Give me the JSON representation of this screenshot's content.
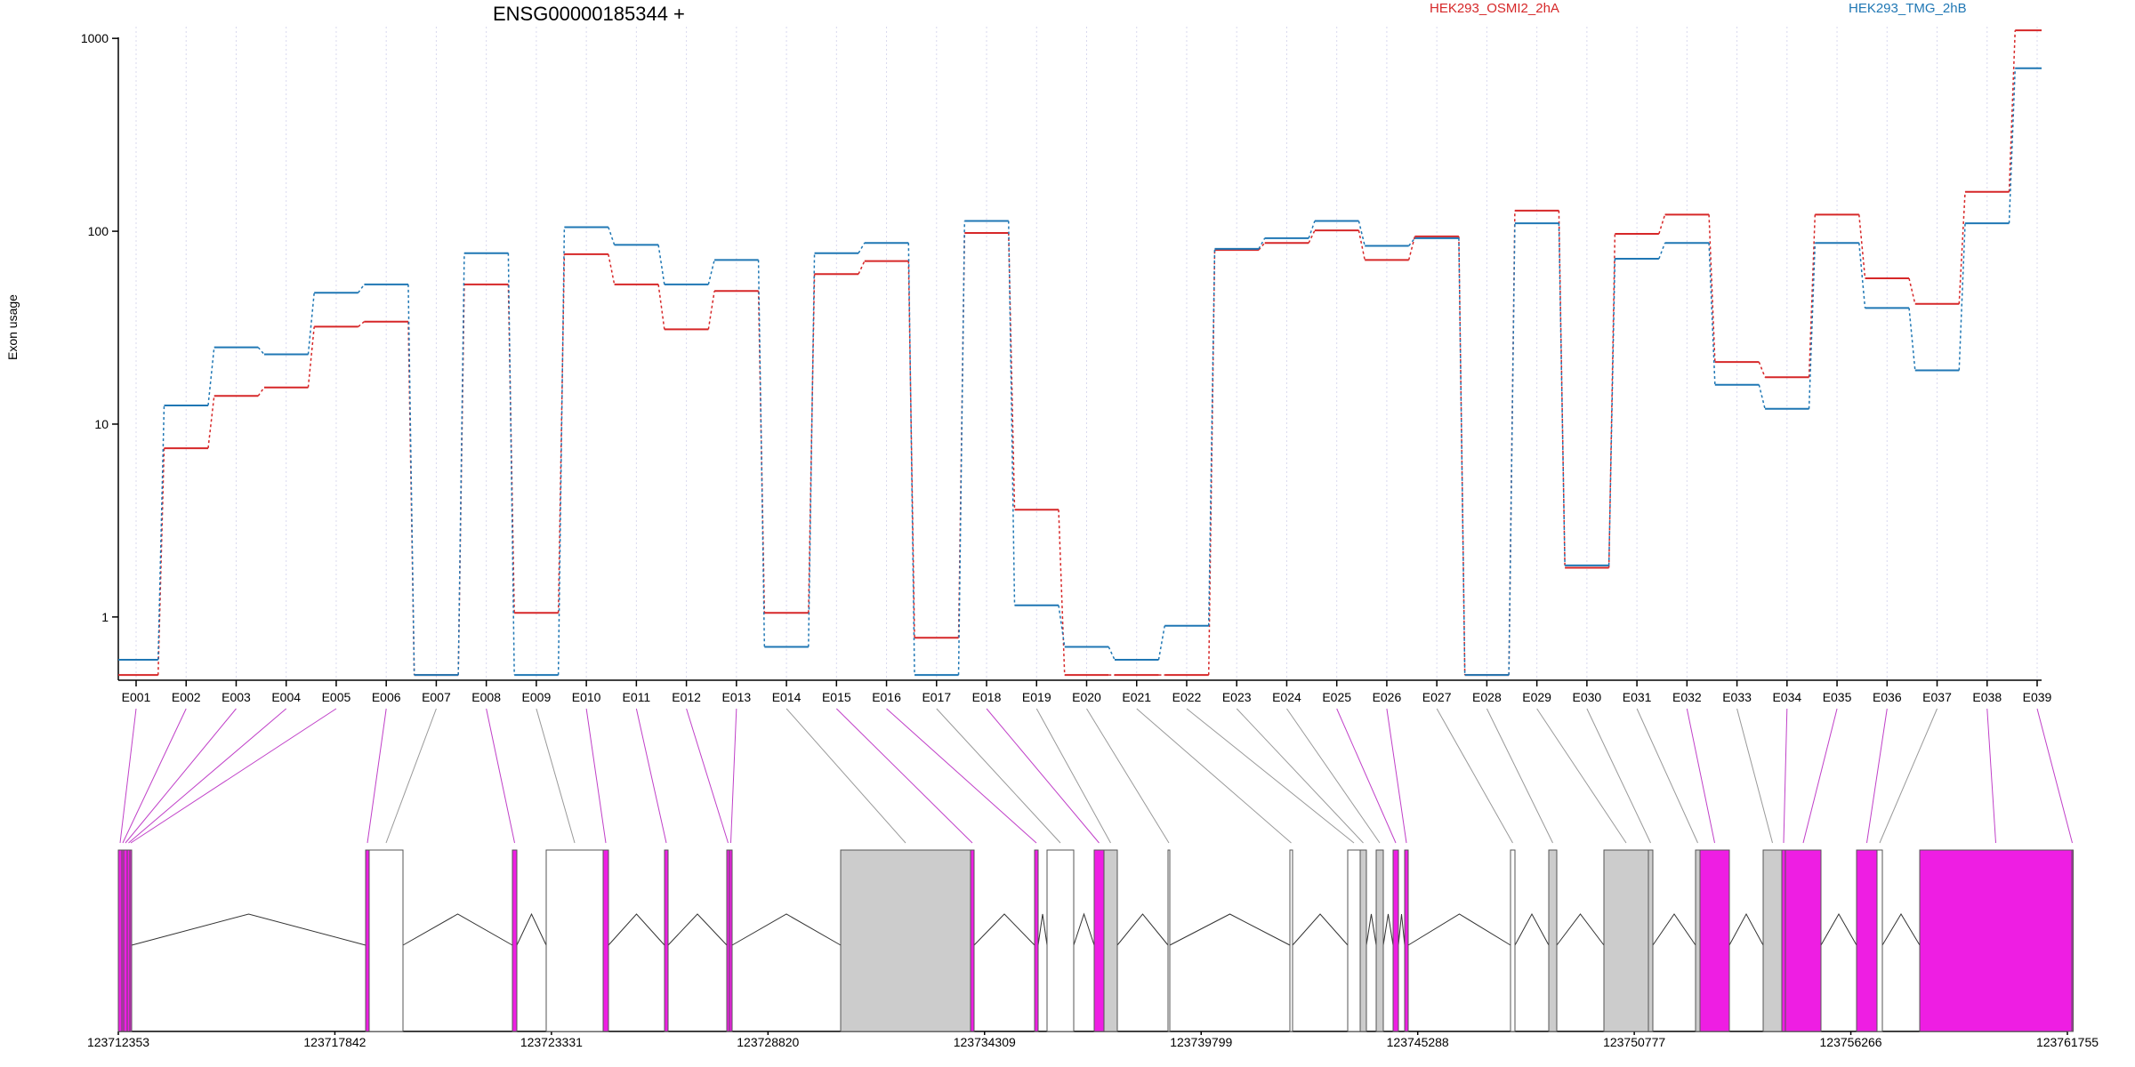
{
  "chart_data": {
    "type": "line",
    "title": "ENSG00000185344 +",
    "xlabel": "",
    "ylabel": "Exon usage",
    "y_scale": "log",
    "y_ticks": [
      1,
      10,
      100,
      1000
    ],
    "y_tick_labels": [
      "1",
      "10",
      "100",
      "1000"
    ],
    "ylim": [
      0.47,
      1150
    ],
    "categories": [
      "E001",
      "E002",
      "E003",
      "E004",
      "E005",
      "E006",
      "E007",
      "E008",
      "E009",
      "E010",
      "E011",
      "E012",
      "E013",
      "E014",
      "E015",
      "E016",
      "E017",
      "E018",
      "E019",
      "E020",
      "E021",
      "E022",
      "E023",
      "E024",
      "E025",
      "E026",
      "E027",
      "E028",
      "E029",
      "E030",
      "E031",
      "E032",
      "E033",
      "E034",
      "E035",
      "E036",
      "E037",
      "E038",
      "E039"
    ],
    "series": [
      {
        "name": "HEK293_OSMI2_2hA",
        "color": "#d62728",
        "values": [
          0.5,
          7.5,
          14,
          15.5,
          32,
          34,
          0.5,
          53,
          1.05,
          76,
          53,
          31,
          49,
          1.05,
          60,
          70,
          0.78,
          98,
          3.6,
          0.5,
          0.5,
          0.5,
          80,
          87,
          101,
          71,
          94,
          0.5,
          128,
          1.8,
          97,
          122,
          21,
          17.5,
          122,
          57,
          42,
          160,
          1100
        ]
      },
      {
        "name": "HEK293_TMG_2hB",
        "color": "#1f77b4",
        "values": [
          0.6,
          12.5,
          25,
          23,
          48,
          53,
          0.5,
          77,
          0.5,
          105,
          85,
          53,
          71,
          0.7,
          77,
          87,
          0.5,
          113,
          1.15,
          0.7,
          0.6,
          0.9,
          81,
          92,
          113,
          84,
          92,
          0.5,
          110,
          1.85,
          72,
          87,
          16,
          12,
          87,
          40,
          19,
          110,
          700
        ]
      }
    ],
    "genomic_axis": {
      "tick_labels": [
        "123712353",
        "123717842",
        "123723331",
        "123728820",
        "123734309",
        "123739799",
        "123745288",
        "123750777",
        "123756266",
        "123761755"
      ]
    },
    "gene_model": {
      "colors": {
        "significant": "#ee1ee3",
        "unused": "#cccccc",
        "default": "#ffffff"
      },
      "exon_status": [
        "significant",
        "significant",
        "significant",
        "significant",
        "significant",
        "significant",
        "default",
        "significant",
        "default",
        "significant",
        "significant",
        "significant",
        "significant",
        "unused",
        "significant",
        "significant",
        "default",
        "significant",
        "unused",
        "default",
        "default",
        "default",
        "unused",
        "unused",
        "significant",
        "significant",
        "default",
        "unused",
        "unused",
        "unused",
        "unused",
        "significant",
        "unused",
        "significant",
        "significant",
        "significant",
        "default",
        "significant",
        "significant"
      ]
    }
  }
}
